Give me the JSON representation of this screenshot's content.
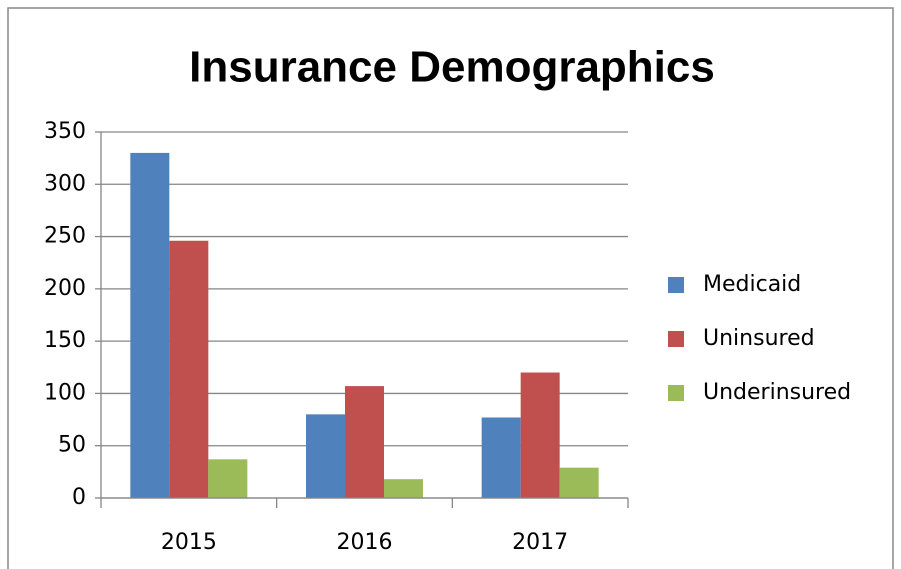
{
  "chart_data": {
    "type": "bar",
    "title": "Insurance Demographics",
    "categories": [
      "2015",
      "2016",
      "2017"
    ],
    "series": [
      {
        "name": "Medicaid",
        "color": "#4f81bd",
        "values": [
          330,
          80,
          77
        ]
      },
      {
        "name": "Uninsured",
        "color": "#c0504d",
        "values": [
          246,
          107,
          120
        ]
      },
      {
        "name": "Underinsured",
        "color": "#9bbb59",
        "values": [
          37,
          18,
          29
        ]
      }
    ],
    "ylim": [
      0,
      350
    ],
    "yticks": [
      0,
      50,
      100,
      150,
      200,
      250,
      300,
      350
    ],
    "grid": true,
    "legend": "right"
  }
}
